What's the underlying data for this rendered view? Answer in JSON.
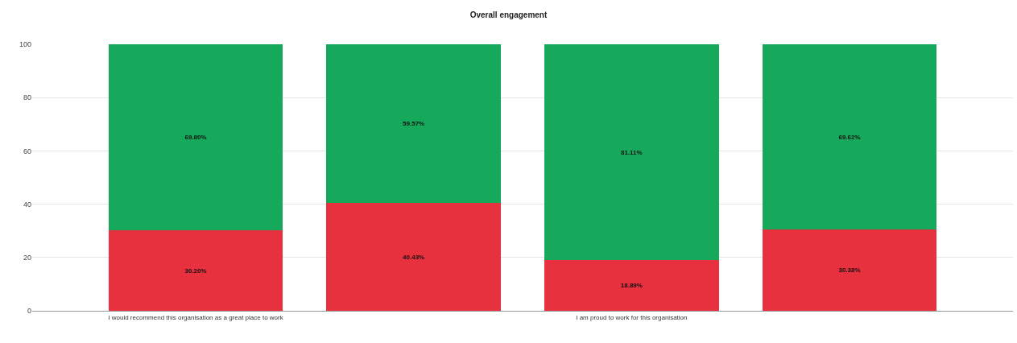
{
  "chart_data": {
    "type": "bar",
    "title": "Overall engagement",
    "categories": [
      "I would recommend this organisation as a great place to work",
      null,
      "I am proud to work for this organisation",
      null
    ],
    "stacked": true,
    "series": [
      {
        "color": "#e8313f",
        "values": [
          30.2,
          40.43,
          18.89,
          30.38
        ],
        "value_labels": [
          "30.20%",
          "40.43%",
          "18.89%",
          "30.38%"
        ]
      },
      {
        "color": "#16a95b",
        "values": [
          69.8,
          59.57,
          81.11,
          69.62
        ],
        "value_labels": [
          "69.80%",
          "59.57%",
          "81.11%",
          "69.62%"
        ]
      }
    ],
    "ylim": [
      0,
      100
    ],
    "yticks": [
      0,
      20,
      40,
      60,
      80,
      100
    ],
    "grid": "y"
  }
}
